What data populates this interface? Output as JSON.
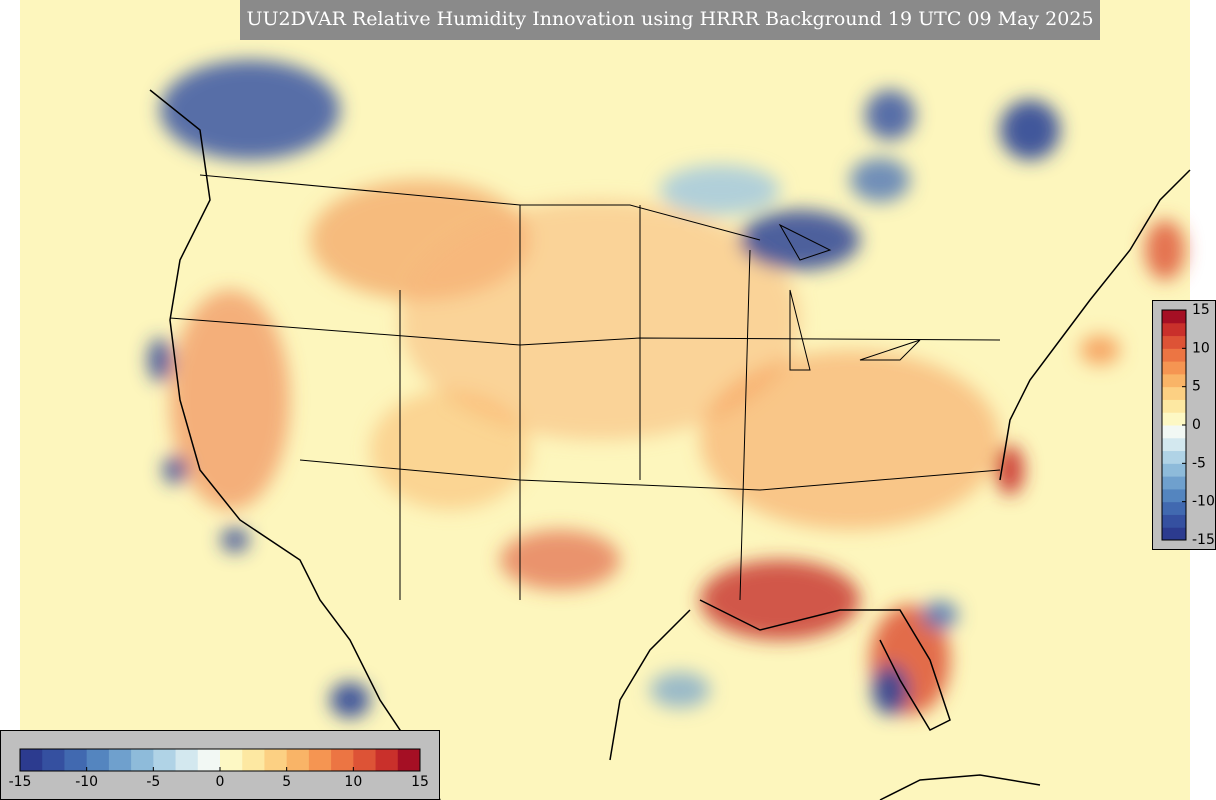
{
  "title": "UU2DVAR Relative Humidity Innovation using HRRR Background 19 UTC 09 May 2025",
  "colorbars": [
    {
      "orientation": "horizontal",
      "range": [
        -15,
        15
      ],
      "ticks": [
        -15,
        -10,
        -5,
        0,
        5,
        10,
        15
      ],
      "colors": [
        "#2c3b8f",
        "#3550a0",
        "#4169b0",
        "#5485bf",
        "#6fa0cd",
        "#8ebbda",
        "#b0d3e6",
        "#d3e8ef",
        "#f2f8f4",
        "#fdf8c4",
        "#fde8a2",
        "#fcd083",
        "#f9b467",
        "#f59552",
        "#ec7543",
        "#dd5336",
        "#c9302b",
        "#a50f24"
      ]
    },
    {
      "orientation": "vertical",
      "range": [
        -15,
        15
      ],
      "ticks": [
        15,
        10,
        5,
        0,
        -5,
        -10,
        -15
      ],
      "colors": [
        "#2c3b8f",
        "#3550a0",
        "#4169b0",
        "#5485bf",
        "#6fa0cd",
        "#8ebbda",
        "#b0d3e6",
        "#d3e8ef",
        "#f2f8f4",
        "#fdf8c4",
        "#fde8a2",
        "#fcd083",
        "#f9b467",
        "#f59552",
        "#ec7543",
        "#dd5336",
        "#c9302b",
        "#a50f24"
      ]
    }
  ]
}
